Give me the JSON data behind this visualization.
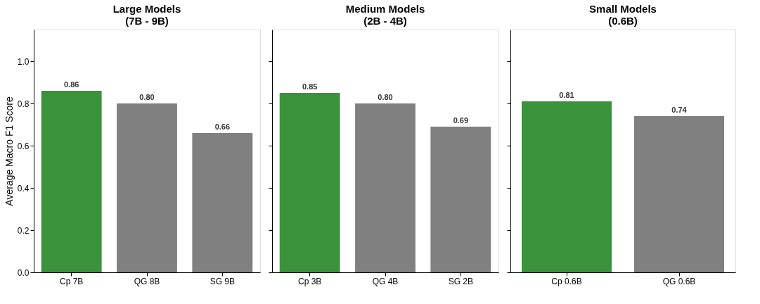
{
  "chart_data": [
    {
      "type": "bar",
      "title": "Large Models\n(7B - 9B)",
      "ylabel": "Average Macro F1 Score",
      "categories": [
        "Cp 7B",
        "QG 8B",
        "SG 9B"
      ],
      "values": [
        0.86,
        0.8,
        0.66
      ],
      "colors": [
        "#3a923a",
        "#808080",
        "#808080"
      ],
      "value_labels": [
        "0.86",
        "0.80",
        "0.66"
      ],
      "ylim": [
        0,
        1.15
      ],
      "yticks": [
        {
          "value": 0,
          "label": "0.0"
        },
        0.2,
        0.4,
        0.6,
        0.8,
        {
          "value": 1,
          "label": "1.0"
        }
      ],
      "grid": false,
      "legend": false
    },
    {
      "type": "bar",
      "title": "Medium Models\n(2B - 4B)",
      "categories": [
        "Cp 3B",
        "QG 4B",
        "SG 2B"
      ],
      "values": [
        0.85,
        0.8,
        0.69
      ],
      "colors": [
        "#3a923a",
        "#808080",
        "#808080"
      ],
      "value_labels": [
        "0.85",
        "0.80",
        "0.69"
      ],
      "ylim": [
        0,
        1.15
      ],
      "yticks": [
        0,
        0.2,
        0.4,
        0.6,
        0.8,
        1
      ],
      "tick_labels": "x",
      "grid": false,
      "legend": false
    },
    {
      "type": "bar",
      "title": "Small Models\n(0.6B)",
      "categories": [
        "Cp 0.6B",
        "QG 0.6B"
      ],
      "values": [
        0.81,
        0.74
      ],
      "colors": [
        "#3a923a",
        "#808080"
      ],
      "value_labels": [
        "0.81",
        "0.74"
      ],
      "ylim": [
        0,
        1.15
      ],
      "yticks": [
        0,
        0.2,
        0.4,
        0.6,
        0.8,
        1
      ],
      "tick_labels": "x",
      "grid": false,
      "legend": false
    }
  ]
}
